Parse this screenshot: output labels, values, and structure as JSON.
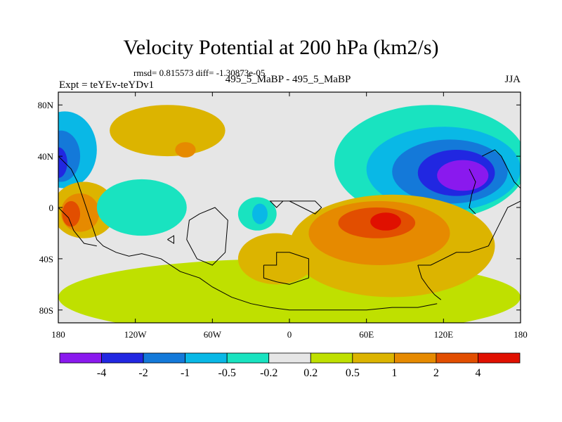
{
  "header": {
    "title": "Velocity Potential at 200 hPa (km2/s)",
    "stats": "rmsd= 0.815573 diff= -1.30873e-05",
    "experiment": "Expt = teYEv-teYDv1",
    "case": "495_5_MaBP - 495_5_MaBP",
    "season": "JJA"
  },
  "chart_data": {
    "type": "heatmap",
    "title": "Velocity Potential at 200 hPa (km2/s)",
    "xlabel": "",
    "ylabel": "",
    "xlim": [
      -180,
      180
    ],
    "ylim": [
      -90,
      90
    ],
    "x_ticks": [
      {
        "value": -180,
        "label": "180"
      },
      {
        "value": -120,
        "label": "120W"
      },
      {
        "value": -60,
        "label": "60W"
      },
      {
        "value": 0,
        "label": "0"
      },
      {
        "value": 60,
        "label": "60E"
      },
      {
        "value": 120,
        "label": "120E"
      },
      {
        "value": 180,
        "label": "180"
      }
    ],
    "y_ticks": [
      {
        "value": 80,
        "label": "80N"
      },
      {
        "value": 40,
        "label": "40N"
      },
      {
        "value": 0,
        "label": "0"
      },
      {
        "value": -40,
        "label": "40S"
      },
      {
        "value": -80,
        "label": "80S"
      }
    ],
    "colorbar": {
      "colors": [
        "#8a19ee",
        "#2127e1",
        "#1479d9",
        "#09b8e6",
        "#19e3c0",
        "#e6e6e6",
        "#bfe000",
        "#dcb400",
        "#e68a00",
        "#e24e00",
        "#e01000"
      ],
      "labels": [
        "-4",
        "-2",
        "-1",
        "-0.5",
        "-0.2",
        "0.2",
        "0.5",
        "1",
        "2",
        "4"
      ]
    },
    "fields": [
      {
        "name": "na-low-base",
        "level": 0.5,
        "lon": -95,
        "lat": 60,
        "rx": 45,
        "ry": 20
      },
      {
        "name": "na-low-peak",
        "level": 1,
        "lon": -81,
        "lat": 45,
        "rx": 8,
        "ry": 6
      },
      {
        "name": "npacific-neg",
        "level": -0.5,
        "lon": -175,
        "lat": 45,
        "rx": 25,
        "ry": 30
      },
      {
        "name": "npacific-neg",
        "level": -1,
        "lon": -178,
        "lat": 40,
        "rx": 15,
        "ry": 20
      },
      {
        "name": "npacific-neg",
        "level": -2,
        "lon": -180,
        "lat": 35,
        "rx": 7,
        "ry": 12
      },
      {
        "name": "epac-pos",
        "level": 0.5,
        "lon": -160,
        "lat": -2,
        "rx": 25,
        "ry": 22
      },
      {
        "name": "epac-pos",
        "level": 1,
        "lon": -163,
        "lat": -4,
        "rx": 15,
        "ry": 15
      },
      {
        "name": "epac-pos",
        "level": 2,
        "lon": -170,
        "lat": -5,
        "rx": 7,
        "ry": 10
      },
      {
        "name": "samerica-neg",
        "level": -0.2,
        "lon": -115,
        "lat": 0,
        "rx": 35,
        "ry": 22
      },
      {
        "name": "atl-neg",
        "level": -0.2,
        "lon": -25,
        "lat": -5,
        "rx": 15,
        "ry": 13
      },
      {
        "name": "atl-neg",
        "level": -0.5,
        "lon": -23,
        "lat": -5,
        "rx": 6,
        "ry": 8
      },
      {
        "name": "sh-band",
        "level": 0.2,
        "lon": 0,
        "lat": -70,
        "rx": 180,
        "ry": 30
      },
      {
        "name": "africa-pos",
        "level": 0.5,
        "lon": -10,
        "lat": -40,
        "rx": 30,
        "ry": 20
      },
      {
        "name": "asia-neg",
        "level": -0.2,
        "lon": 110,
        "lat": 35,
        "rx": 75,
        "ry": 45
      },
      {
        "name": "asia-neg",
        "level": -0.5,
        "lon": 120,
        "lat": 30,
        "rx": 60,
        "ry": 33
      },
      {
        "name": "asia-neg",
        "level": -1,
        "lon": 125,
        "lat": 28,
        "rx": 45,
        "ry": 25
      },
      {
        "name": "asia-neg",
        "level": -2,
        "lon": 130,
        "lat": 27,
        "rx": 30,
        "ry": 18
      },
      {
        "name": "asia-neg",
        "level": -4,
        "lon": 135,
        "lat": 25,
        "rx": 20,
        "ry": 12
      },
      {
        "name": "io-pos",
        "level": 0.5,
        "lon": 80,
        "lat": -30,
        "rx": 80,
        "ry": 40
      },
      {
        "name": "io-pos",
        "level": 1,
        "lon": 70,
        "lat": -20,
        "rx": 55,
        "ry": 25
      },
      {
        "name": "io-pos",
        "level": 2,
        "lon": 68,
        "lat": -12,
        "rx": 30,
        "ry": 12
      },
      {
        "name": "io-pos",
        "level": 4,
        "lon": 75,
        "lat": -11,
        "rx": 12,
        "ry": 7
      }
    ]
  }
}
